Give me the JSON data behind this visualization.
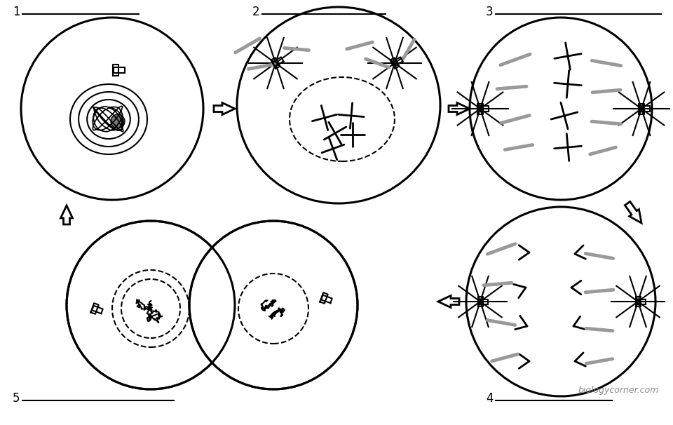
{
  "background_color": "#ffffff",
  "line_color": "#000000",
  "gray": "#999999",
  "label_fontsize": 12,
  "watermark": "biologycorner.com",
  "watermark_fontsize": 9,
  "figw": 9.6,
  "figh": 6.06,
  "dpi": 100
}
